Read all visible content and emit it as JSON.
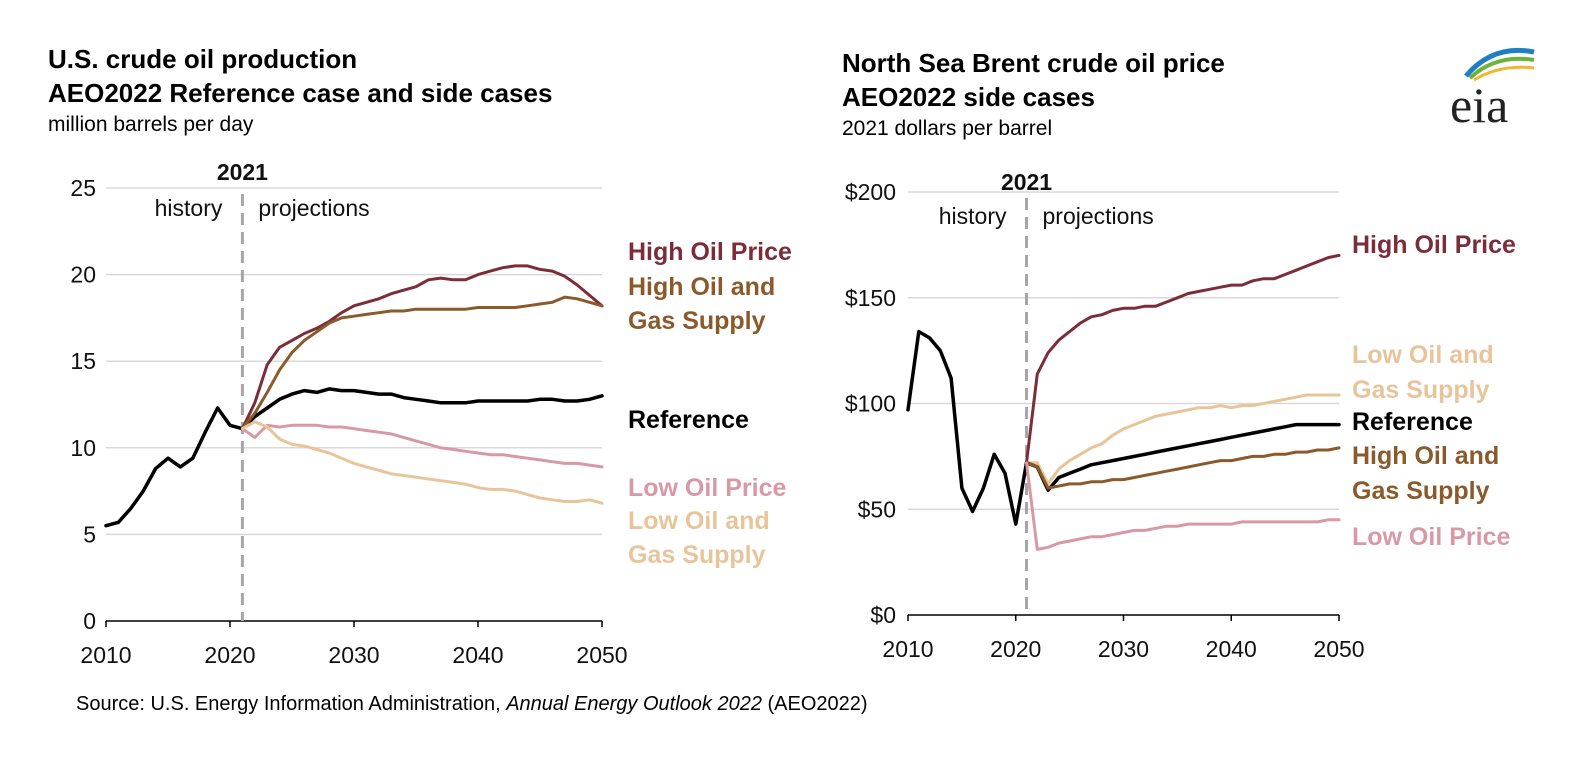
{
  "left": {
    "title1": "U.S. crude oil production",
    "title2": "AEO2022 Reference case and side cases",
    "unit": "million barrels per day"
  },
  "right": {
    "title1": "North Sea Brent crude oil price",
    "title2": "AEO2022 side cases",
    "unit": "2021 dollars per barrel"
  },
  "source": {
    "prefix": "Source: U.S. Energy Information Administration, ",
    "italic": "Annual Energy Outlook 2022",
    "suffix": " (AEO2022)"
  },
  "logo_text": "eia",
  "chart_data": [
    {
      "type": "line",
      "title": "U.S. crude oil production",
      "subtitle": "AEO2022 Reference case and side cases",
      "ylabel": "million barrels per day",
      "xlim": [
        2010,
        2050
      ],
      "ylim": [
        0,
        25
      ],
      "xticks": [
        2010,
        2020,
        2030,
        2040,
        2050
      ],
      "yticks": [
        0,
        5,
        10,
        15,
        20,
        25
      ],
      "ytick_labels": [
        "0",
        "5",
        "10",
        "15",
        "20",
        "25"
      ],
      "divider": {
        "x": 2021,
        "label": "2021",
        "left": "history",
        "right": "projections"
      },
      "series": [
        {
          "name": "Reference",
          "label": [
            "Reference"
          ],
          "color": "#000000",
          "width": 3.5,
          "x": [
            2010,
            2011,
            2012,
            2013,
            2014,
            2015,
            2016,
            2017,
            2018,
            2019,
            2020,
            2021,
            2022,
            2023,
            2024,
            2025,
            2026,
            2027,
            2028,
            2029,
            2030,
            2031,
            2032,
            2033,
            2034,
            2035,
            2036,
            2037,
            2038,
            2039,
            2040,
            2041,
            2042,
            2043,
            2044,
            2045,
            2046,
            2047,
            2048,
            2049,
            2050
          ],
          "y": [
            5.5,
            5.7,
            6.5,
            7.5,
            8.8,
            9.4,
            8.9,
            9.4,
            10.9,
            12.3,
            11.3,
            11.1,
            11.8,
            12.3,
            12.8,
            13.1,
            13.3,
            13.2,
            13.4,
            13.3,
            13.3,
            13.2,
            13.1,
            13.1,
            12.9,
            12.8,
            12.7,
            12.6,
            12.6,
            12.6,
            12.7,
            12.7,
            12.7,
            12.7,
            12.7,
            12.8,
            12.8,
            12.7,
            12.7,
            12.8,
            13.0
          ]
        },
        {
          "name": "High Oil Price",
          "label": [
            "High Oil Price"
          ],
          "color": "#7b2d3a",
          "width": 3,
          "x": [
            2021,
            2022,
            2023,
            2024,
            2025,
            2026,
            2027,
            2028,
            2029,
            2030,
            2031,
            2032,
            2033,
            2034,
            2035,
            2036,
            2037,
            2038,
            2039,
            2040,
            2041,
            2042,
            2043,
            2044,
            2045,
            2046,
            2047,
            2048,
            2049,
            2050
          ],
          "y": [
            11.1,
            12.6,
            14.8,
            15.8,
            16.2,
            16.6,
            16.9,
            17.3,
            17.8,
            18.2,
            18.4,
            18.6,
            18.9,
            19.1,
            19.3,
            19.7,
            19.8,
            19.7,
            19.7,
            20.0,
            20.2,
            20.4,
            20.5,
            20.5,
            20.3,
            20.2,
            19.9,
            19.4,
            18.8,
            18.2
          ]
        },
        {
          "name": "High Oil and Gas Supply",
          "label": [
            "High Oil and",
            "Gas Supply"
          ],
          "color": "#8a5a2b",
          "width": 3,
          "x": [
            2021,
            2022,
            2023,
            2024,
            2025,
            2026,
            2027,
            2028,
            2029,
            2030,
            2031,
            2032,
            2033,
            2034,
            2035,
            2036,
            2037,
            2038,
            2039,
            2040,
            2041,
            2042,
            2043,
            2044,
            2045,
            2046,
            2047,
            2048,
            2049,
            2050
          ],
          "y": [
            11.1,
            12.0,
            13.2,
            14.5,
            15.5,
            16.2,
            16.7,
            17.2,
            17.5,
            17.6,
            17.7,
            17.8,
            17.9,
            17.9,
            18.0,
            18.0,
            18.0,
            18.0,
            18.0,
            18.1,
            18.1,
            18.1,
            18.1,
            18.2,
            18.3,
            18.4,
            18.7,
            18.6,
            18.4,
            18.2
          ]
        },
        {
          "name": "Low Oil Price",
          "label": [
            "Low Oil Price"
          ],
          "color": "#d898a6",
          "width": 3,
          "x": [
            2021,
            2022,
            2023,
            2024,
            2025,
            2026,
            2027,
            2028,
            2029,
            2030,
            2031,
            2032,
            2033,
            2034,
            2035,
            2036,
            2037,
            2038,
            2039,
            2040,
            2041,
            2042,
            2043,
            2044,
            2045,
            2046,
            2047,
            2048,
            2049,
            2050
          ],
          "y": [
            11.1,
            10.6,
            11.3,
            11.2,
            11.3,
            11.3,
            11.3,
            11.2,
            11.2,
            11.1,
            11.0,
            10.9,
            10.8,
            10.6,
            10.4,
            10.2,
            10.0,
            9.9,
            9.8,
            9.7,
            9.6,
            9.6,
            9.5,
            9.4,
            9.3,
            9.2,
            9.1,
            9.1,
            9.0,
            8.9
          ]
        },
        {
          "name": "Low Oil and Gas Supply",
          "label": [
            "Low Oil and",
            "Gas Supply"
          ],
          "color": "#e8c49a",
          "width": 3,
          "x": [
            2021,
            2022,
            2023,
            2024,
            2025,
            2026,
            2027,
            2028,
            2029,
            2030,
            2031,
            2032,
            2033,
            2034,
            2035,
            2036,
            2037,
            2038,
            2039,
            2040,
            2041,
            2042,
            2043,
            2044,
            2045,
            2046,
            2047,
            2048,
            2049,
            2050
          ],
          "y": [
            11.1,
            11.5,
            11.2,
            10.5,
            10.2,
            10.1,
            9.9,
            9.7,
            9.4,
            9.1,
            8.9,
            8.7,
            8.5,
            8.4,
            8.3,
            8.2,
            8.1,
            8.0,
            7.9,
            7.7,
            7.6,
            7.6,
            7.5,
            7.3,
            7.1,
            7.0,
            6.9,
            6.9,
            7.0,
            6.8
          ]
        }
      ]
    },
    {
      "type": "line",
      "title": "North Sea Brent crude oil price",
      "subtitle": "AEO2022 side cases",
      "ylabel": "2021 dollars per barrel",
      "xlim": [
        2010,
        2050
      ],
      "ylim": [
        0,
        200
      ],
      "xticks": [
        2010,
        2020,
        2030,
        2040,
        2050
      ],
      "yticks": [
        0,
        50,
        100,
        150,
        200
      ],
      "ytick_labels": [
        "$0",
        "$50",
        "$100",
        "$150",
        "$200"
      ],
      "divider": {
        "x": 2021,
        "label": "2021",
        "left": "history",
        "right": "projections"
      },
      "series": [
        {
          "name": "High Oil Price",
          "label": [
            "High Oil Price"
          ],
          "color": "#7b2d3a",
          "width": 3,
          "x": [
            2021,
            2022,
            2023,
            2024,
            2025,
            2026,
            2027,
            2028,
            2029,
            2030,
            2031,
            2032,
            2033,
            2034,
            2035,
            2036,
            2037,
            2038,
            2039,
            2040,
            2041,
            2042,
            2043,
            2044,
            2045,
            2046,
            2047,
            2048,
            2049,
            2050
          ],
          "y": [
            72,
            114,
            124,
            130,
            134,
            138,
            141,
            142,
            144,
            145,
            145,
            146,
            146,
            148,
            150,
            152,
            153,
            154,
            155,
            156,
            156,
            158,
            159,
            159,
            161,
            163,
            165,
            167,
            169,
            170
          ]
        },
        {
          "name": "Low Oil and Gas Supply",
          "label": [
            "Low Oil and",
            "Gas Supply"
          ],
          "color": "#e8c49a",
          "width": 3,
          "x": [
            2021,
            2022,
            2023,
            2024,
            2025,
            2026,
            2027,
            2028,
            2029,
            2030,
            2031,
            2032,
            2033,
            2034,
            2035,
            2036,
            2037,
            2038,
            2039,
            2040,
            2041,
            2042,
            2043,
            2044,
            2045,
            2046,
            2047,
            2048,
            2049,
            2050
          ],
          "y": [
            72,
            72,
            62,
            69,
            73,
            76,
            79,
            81,
            85,
            88,
            90,
            92,
            94,
            95,
            96,
            97,
            98,
            98,
            99,
            98,
            99,
            99,
            100,
            101,
            102,
            103,
            104,
            104,
            104,
            104
          ]
        },
        {
          "name": "Reference",
          "label": [
            "Reference"
          ],
          "color": "#000000",
          "width": 3.5,
          "x": [
            2010,
            2011,
            2012,
            2013,
            2014,
            2015,
            2016,
            2017,
            2018,
            2019,
            2020,
            2021,
            2022,
            2023,
            2024,
            2025,
            2026,
            2027,
            2028,
            2029,
            2030,
            2031,
            2032,
            2033,
            2034,
            2035,
            2036,
            2037,
            2038,
            2039,
            2040,
            2041,
            2042,
            2043,
            2044,
            2045,
            2046,
            2047,
            2048,
            2049,
            2050
          ],
          "y": [
            97,
            134,
            131,
            125,
            112,
            60,
            49,
            60,
            76,
            67,
            43,
            72,
            70,
            59,
            65,
            67,
            69,
            71,
            72,
            73,
            74,
            75,
            76,
            77,
            78,
            79,
            80,
            81,
            82,
            83,
            84,
            85,
            86,
            87,
            88,
            89,
            90,
            90,
            90,
            90,
            90
          ]
        },
        {
          "name": "High Oil and Gas Supply",
          "label": [
            "High Oil and",
            "Gas Supply"
          ],
          "color": "#8a5a2b",
          "width": 3,
          "x": [
            2021,
            2022,
            2023,
            2024,
            2025,
            2026,
            2027,
            2028,
            2029,
            2030,
            2031,
            2032,
            2033,
            2034,
            2035,
            2036,
            2037,
            2038,
            2039,
            2040,
            2041,
            2042,
            2043,
            2044,
            2045,
            2046,
            2047,
            2048,
            2049,
            2050
          ],
          "y": [
            72,
            70,
            60,
            61,
            62,
            62,
            63,
            63,
            64,
            64,
            65,
            66,
            67,
            68,
            69,
            70,
            71,
            72,
            73,
            73,
            74,
            75,
            75,
            76,
            76,
            77,
            77,
            78,
            78,
            79
          ]
        },
        {
          "name": "Low Oil Price",
          "label": [
            "Low Oil Price"
          ],
          "color": "#d898a6",
          "width": 3,
          "x": [
            2021,
            2022,
            2023,
            2024,
            2025,
            2026,
            2027,
            2028,
            2029,
            2030,
            2031,
            2032,
            2033,
            2034,
            2035,
            2036,
            2037,
            2038,
            2039,
            2040,
            2041,
            2042,
            2043,
            2044,
            2045,
            2046,
            2047,
            2048,
            2049,
            2050
          ],
          "y": [
            72,
            31,
            32,
            34,
            35,
            36,
            37,
            37,
            38,
            39,
            40,
            40,
            41,
            42,
            42,
            43,
            43,
            43,
            43,
            43,
            44,
            44,
            44,
            44,
            44,
            44,
            44,
            44,
            45,
            45
          ]
        }
      ]
    }
  ]
}
